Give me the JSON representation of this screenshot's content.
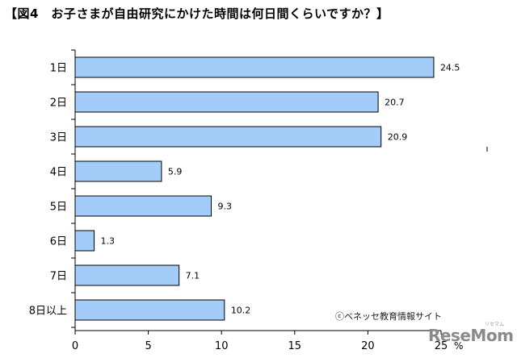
{
  "title": "【図4　お子さまが自由研究にかけた時間は何日間くらいですか？】",
  "credit": "ⓒベネッセ教育情報サイト",
  "logo": "ReseMom",
  "logo_sub": "リセマム",
  "colors": {
    "bar_fill": "#A4CCF8",
    "bar_stroke": "#000000"
  },
  "chart_data": {
    "type": "bar",
    "orientation": "horizontal",
    "title": "【図4　お子さまが自由研究にかけた時間は何日間くらいですか？】",
    "categories": [
      "1日",
      "2日",
      "3日",
      "4日",
      "5日",
      "6日",
      "7日",
      "8日以上"
    ],
    "values": [
      24.5,
      20.7,
      20.9,
      5.9,
      9.3,
      1.3,
      7.1,
      10.2
    ],
    "data_labels": [
      "24.5",
      "20.7",
      "20.9",
      "5.9",
      "9.3",
      "1.3",
      "7.1",
      "10.2"
    ],
    "xlim": [
      0,
      25
    ],
    "xticks": [
      "0",
      "5",
      "10",
      "15",
      "20",
      "25"
    ],
    "x_unit": "%",
    "grid": false,
    "legend": "none"
  }
}
